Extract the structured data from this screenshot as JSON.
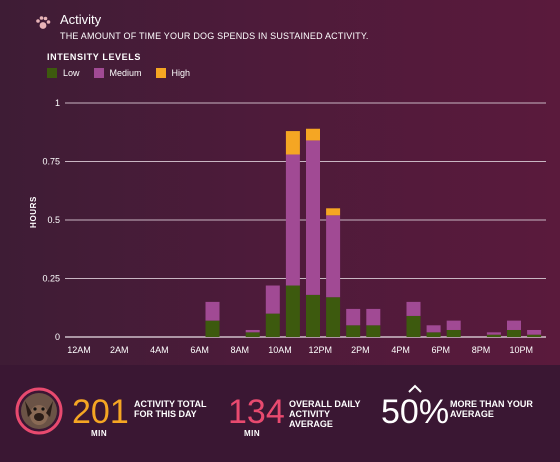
{
  "header": {
    "title": "Activity",
    "subtitle": "THE AMOUNT OF TIME YOUR DOG SPENDS IN SUSTAINED ACTIVITY."
  },
  "legend": {
    "title": "INTENSITY LEVELS",
    "items": [
      {
        "label": "Low",
        "color": "#3d5a0e"
      },
      {
        "label": "Medium",
        "color": "#a14a94"
      },
      {
        "label": "High",
        "color": "#f5a623"
      }
    ]
  },
  "chart_data": {
    "type": "bar",
    "stacked": true,
    "ylabel": "HOURS",
    "ylim": [
      0,
      1
    ],
    "yticks": [
      "0",
      "0.25",
      "0.5",
      "0.75",
      "1"
    ],
    "xtick_labels": [
      "12AM",
      "2AM",
      "4AM",
      "6AM",
      "8AM",
      "10AM",
      "12PM",
      "2PM",
      "4PM",
      "6PM",
      "8PM",
      "10PM"
    ],
    "categories": [
      "12AM",
      "1AM",
      "2AM",
      "3AM",
      "4AM",
      "5AM",
      "6AM",
      "7AM",
      "8AM",
      "9AM",
      "10AM",
      "11AM",
      "12PM",
      "1PM",
      "2PM",
      "3PM",
      "4PM",
      "5PM",
      "6PM",
      "7PM",
      "8PM",
      "9PM",
      "10PM",
      "11PM"
    ],
    "series": [
      {
        "name": "Low",
        "color": "#3d5a0e",
        "values": [
          0,
          0,
          0,
          0,
          0,
          0.07,
          0,
          0.02,
          0.1,
          0.22,
          0.18,
          0.17,
          0.05,
          0.05,
          0,
          0.09,
          0.02,
          0.03,
          0,
          0.01,
          0.03,
          0.01,
          0,
          0
        ]
      },
      {
        "name": "Medium",
        "color": "#a14a94",
        "values": [
          0,
          0,
          0,
          0,
          0,
          0.08,
          0,
          0.01,
          0.12,
          0.56,
          0.66,
          0.35,
          0.07,
          0.07,
          0,
          0.06,
          0.03,
          0.04,
          0,
          0.01,
          0.04,
          0.02,
          0,
          0
        ]
      },
      {
        "name": "High",
        "color": "#f5a623",
        "values": [
          0,
          0,
          0,
          0,
          0,
          0,
          0,
          0,
          0,
          0.1,
          0.05,
          0.03,
          0,
          0,
          0,
          0,
          0,
          0,
          0,
          0,
          0,
          0,
          0,
          0
        ]
      }
    ]
  },
  "stats": {
    "total": {
      "value": "201",
      "unit": "MIN",
      "label_line1": "ACTIVITY TOTAL",
      "label_line2": "FOR THIS DAY",
      "color": "#f5a623"
    },
    "average": {
      "value": "134",
      "unit": "MIN",
      "label_line1": "OVERALL DAILY",
      "label_line2": "ACTIVITY",
      "label_line3": "AVERAGE",
      "color": "#e84a6f"
    },
    "compare": {
      "value": "50%",
      "label_line1": "MORE THAN YOUR",
      "label_line2": "AVERAGE",
      "icon": "chevron-up-icon"
    }
  },
  "avatar": {
    "icon": "dog-avatar-icon",
    "ring_color": "#e84a6f"
  }
}
